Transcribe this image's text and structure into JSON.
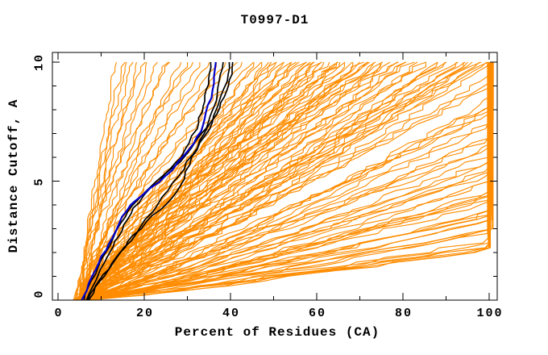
{
  "chart_data": {
    "type": "line",
    "title": "T0997-D1",
    "xlabel": "Percent of Residues (CA)",
    "ylabel": "Distance Cutoff, A",
    "xlim": [
      -1.3,
      101.9
    ],
    "ylim": [
      0,
      10.4
    ],
    "grid": false,
    "legend": "none",
    "x_major_ticks": [
      0,
      20,
      40,
      60,
      80,
      100
    ],
    "x_minor_ticks": [
      10,
      30,
      50,
      70,
      90
    ],
    "y_major_ticks": [
      0,
      5,
      10
    ],
    "y_minor_ticks": [
      1,
      2,
      3,
      4,
      6,
      7,
      8,
      9
    ],
    "colors": {
      "model_curves": "#ff8c00",
      "black_curves": "#000000",
      "blue_curve": "#0000cd",
      "axis": "#000000",
      "background": "#ffffff"
    },
    "blue_curve_points": [
      [
        5.5,
        0
      ],
      [
        6.5,
        0.4
      ],
      [
        8,
        1.0
      ],
      [
        9.5,
        1.6
      ],
      [
        11,
        2.1
      ],
      [
        12.5,
        2.6
      ],
      [
        14,
        3.2
      ],
      [
        16,
        3.8
      ],
      [
        18,
        4.2
      ],
      [
        21.5,
        4.7
      ],
      [
        25,
        5.2
      ],
      [
        27.5,
        5.7
      ],
      [
        29.5,
        6.1
      ],
      [
        31.5,
        6.6
      ],
      [
        33,
        7.1
      ],
      [
        34,
        7.6
      ],
      [
        35,
        8.2
      ],
      [
        35.8,
        8.8
      ],
      [
        36.3,
        9.4
      ],
      [
        36.6,
        10
      ]
    ],
    "black_curves_points": [
      [
        [
          6,
          0
        ],
        [
          7,
          0.5
        ],
        [
          8.5,
          1.1
        ],
        [
          10,
          1.7
        ],
        [
          12,
          2.3
        ],
        [
          13.5,
          2.9
        ],
        [
          15.5,
          3.5
        ],
        [
          17.5,
          4.0
        ],
        [
          20,
          4.5
        ],
        [
          23,
          5.0
        ],
        [
          26,
          5.5
        ],
        [
          28.5,
          6.0
        ],
        [
          30.5,
          6.6
        ],
        [
          32,
          7.2
        ],
        [
          33.2,
          7.9
        ],
        [
          34.2,
          8.6
        ],
        [
          35,
          9.3
        ],
        [
          35.4,
          10
        ]
      ],
      [
        [
          6.5,
          0
        ],
        [
          8,
          0.6
        ],
        [
          10,
          1.3
        ],
        [
          12,
          2.0
        ],
        [
          14,
          2.7
        ],
        [
          16,
          3.4
        ],
        [
          18.5,
          4.1
        ],
        [
          21.5,
          4.7
        ],
        [
          25,
          5.3
        ],
        [
          28,
          5.8
        ],
        [
          31,
          6.4
        ],
        [
          33.5,
          7.0
        ],
        [
          35.3,
          7.7
        ],
        [
          36.6,
          8.4
        ],
        [
          37.6,
          9.2
        ],
        [
          38.3,
          10
        ]
      ],
      [
        [
          7,
          0
        ],
        [
          9,
          0.6
        ],
        [
          11.5,
          1.3
        ],
        [
          14.5,
          2.0
        ],
        [
          17.5,
          2.7
        ],
        [
          20.5,
          3.3
        ],
        [
          23.5,
          3.8
        ],
        [
          26,
          4.2
        ],
        [
          28,
          4.6
        ],
        [
          29,
          5.1
        ],
        [
          30.5,
          5.7
        ],
        [
          32,
          6.3
        ],
        [
          34,
          6.9
        ],
        [
          35.8,
          7.5
        ],
        [
          37.3,
          8.2
        ],
        [
          38.6,
          8.9
        ],
        [
          39.4,
          9.5
        ],
        [
          39.7,
          10
        ]
      ],
      [
        [
          6.8,
          0
        ],
        [
          8.5,
          0.5
        ],
        [
          10.5,
          1.0
        ],
        [
          13,
          1.6
        ],
        [
          15.5,
          2.2
        ],
        [
          18,
          2.8
        ],
        [
          20.5,
          3.4
        ],
        [
          23,
          4.0
        ],
        [
          25.5,
          4.6
        ],
        [
          28,
          5.2
        ],
        [
          30,
          5.8
        ],
        [
          32,
          6.4
        ],
        [
          34,
          7.0
        ],
        [
          36,
          7.6
        ],
        [
          37.8,
          8.3
        ],
        [
          39.2,
          9.0
        ],
        [
          40.1,
          9.5
        ],
        [
          40.5,
          10
        ]
      ]
    ],
    "orange_curve_params_format": "[start_pct_at_y0, pct_at_y10_uncapped, shape_exponent]; x(y)=s+(e-s)*(y/10)^b, capped near 100",
    "orange_curve_params": [
      [
        5,
        13.5,
        1.35
      ],
      [
        4.5,
        15,
        1.2
      ],
      [
        5.5,
        16,
        1.45
      ],
      [
        4,
        17,
        1.1
      ],
      [
        6,
        18.5,
        1.3
      ],
      [
        5,
        20,
        1.5
      ],
      [
        4.5,
        21,
        1.15
      ],
      [
        5.5,
        23,
        1.35
      ],
      [
        6,
        25,
        1.2
      ],
      [
        4,
        26,
        1.4
      ],
      [
        5,
        28,
        1.1
      ],
      [
        6.5,
        30,
        1.3
      ],
      [
        4.5,
        31,
        1.5
      ],
      [
        5,
        33,
        1.2
      ],
      [
        5.5,
        35,
        1.35
      ],
      [
        4,
        37,
        1.15
      ],
      [
        6,
        39,
        1.3
      ],
      [
        5,
        41,
        1.45
      ],
      [
        4.5,
        43,
        1.2
      ],
      [
        5.5,
        45,
        1.3
      ],
      [
        4,
        46,
        1.0
      ],
      [
        5,
        47,
        1.2
      ],
      [
        6,
        48,
        0.95
      ],
      [
        4.5,
        49,
        1.1
      ],
      [
        5.5,
        50,
        1.3
      ],
      [
        4,
        51,
        0.9
      ],
      [
        6,
        52,
        1.15
      ],
      [
        5,
        53,
        1.0
      ],
      [
        4.5,
        54,
        1.25
      ],
      [
        5.5,
        55,
        0.95
      ],
      [
        6,
        56,
        1.1
      ],
      [
        4,
        57,
        1.3
      ],
      [
        5,
        58,
        1.0
      ],
      [
        6.5,
        59,
        1.2
      ],
      [
        4.5,
        60,
        0.9
      ],
      [
        5.5,
        61,
        1.15
      ],
      [
        4,
        62,
        1.0
      ],
      [
        6,
        63,
        1.25
      ],
      [
        5,
        64,
        0.95
      ],
      [
        4.5,
        65,
        1.1
      ],
      [
        5.5,
        66,
        1.3
      ],
      [
        6,
        67,
        1.0
      ],
      [
        4,
        68,
        1.2
      ],
      [
        5,
        69,
        0.9
      ],
      [
        6.5,
        70,
        1.15
      ],
      [
        4.5,
        71,
        1.0
      ],
      [
        5.5,
        72,
        1.25
      ],
      [
        4,
        73,
        0.95
      ],
      [
        6,
        74,
        1.1
      ],
      [
        5,
        75,
        1.3
      ],
      [
        4.5,
        76,
        1.0
      ],
      [
        5.5,
        77,
        1.2
      ],
      [
        6,
        78,
        0.9
      ],
      [
        4,
        79,
        1.15
      ],
      [
        5,
        80,
        1.0
      ],
      [
        5.5,
        50,
        1.05
      ],
      [
        4.5,
        55,
        1.2
      ],
      [
        6,
        60,
        1.0
      ],
      [
        5,
        65,
        1.15
      ],
      [
        4.5,
        70,
        0.95
      ],
      [
        5,
        81,
        0.95
      ],
      [
        4.5,
        82,
        1.05
      ],
      [
        5.5,
        84,
        0.9
      ],
      [
        6,
        85,
        1.0
      ],
      [
        4,
        86,
        1.1
      ],
      [
        5,
        88,
        0.85
      ],
      [
        5.5,
        89,
        1.0
      ],
      [
        4.5,
        90,
        0.95
      ],
      [
        6,
        92,
        1.05
      ],
      [
        5,
        93,
        0.9
      ],
      [
        4,
        94,
        1.0
      ],
      [
        5.5,
        95,
        0.85
      ],
      [
        6,
        96,
        0.95
      ],
      [
        4.5,
        97,
        1.05
      ],
      [
        5,
        98,
        0.9
      ],
      [
        5.5,
        99,
        1.0
      ],
      [
        4,
        100,
        0.95
      ],
      [
        6,
        101,
        0.9
      ],
      [
        5,
        96,
        1.0
      ],
      [
        4.5,
        88,
        0.92
      ],
      [
        5,
        105,
        0.9
      ],
      [
        4.5,
        110,
        0.95
      ],
      [
        5.5,
        115,
        0.85
      ],
      [
        6,
        120,
        0.9
      ],
      [
        4,
        125,
        0.95
      ],
      [
        5,
        130,
        0.88
      ],
      [
        5.5,
        140,
        0.92
      ],
      [
        4.5,
        150,
        0.85
      ],
      [
        6,
        160,
        0.9
      ],
      [
        5,
        170,
        0.87
      ],
      [
        4,
        180,
        0.93
      ],
      [
        5.5,
        190,
        0.85
      ],
      [
        6,
        200,
        0.9
      ],
      [
        4.5,
        215,
        0.88
      ],
      [
        5,
        230,
        0.85
      ],
      [
        5.5,
        245,
        0.9
      ],
      [
        4,
        260,
        0.87
      ],
      [
        6,
        280,
        0.85
      ],
      [
        5,
        300,
        0.9
      ],
      [
        4.5,
        320,
        0.86
      ],
      [
        5.5,
        340,
        0.88
      ],
      [
        6,
        360,
        0.85
      ],
      [
        4,
        375,
        0.9
      ],
      [
        5,
        360,
        0.87
      ],
      [
        4.5,
        350,
        0.85
      ],
      [
        5.5,
        380,
        0.88
      ],
      [
        5,
        300,
        0.92
      ],
      [
        6,
        200,
        0.86
      ],
      [
        4.5,
        150,
        0.95
      ],
      [
        5,
        120,
        0.85
      ],
      [
        4,
        108,
        0.92
      ],
      [
        5,
        118,
        0.88
      ],
      [
        6,
        128,
        0.9
      ],
      [
        4.5,
        138,
        0.86
      ],
      [
        5.5,
        148,
        0.92
      ],
      [
        4,
        158,
        0.88
      ],
      [
        5,
        168,
        0.9
      ],
      [
        6,
        178,
        0.85
      ],
      [
        4.5,
        188,
        0.92
      ],
      [
        5.5,
        198,
        0.87
      ],
      [
        4,
        210,
        0.9
      ],
      [
        5,
        225,
        0.85
      ],
      [
        6,
        240,
        0.9
      ],
      [
        4.5,
        255,
        0.87
      ],
      [
        5.5,
        270,
        0.85
      ],
      [
        4,
        62,
        1.05
      ],
      [
        5,
        58,
        1.1
      ],
      [
        6,
        66,
        0.95
      ],
      [
        4.5,
        72,
        1.08
      ],
      [
        5.5,
        76,
        0.98
      ]
    ]
  }
}
